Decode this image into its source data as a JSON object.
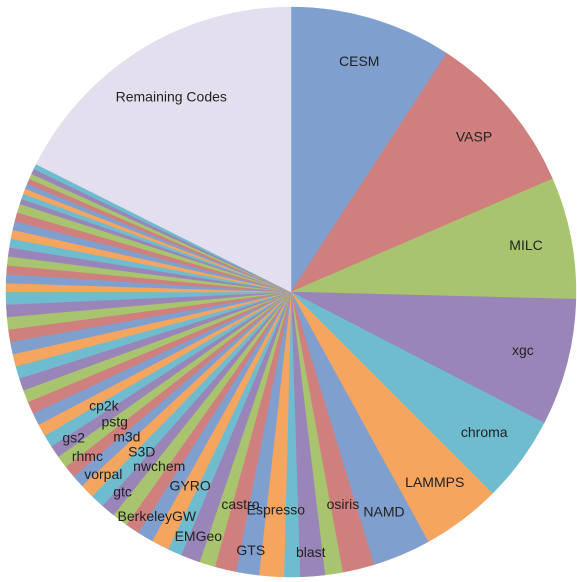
{
  "chart_data": {
    "type": "pie",
    "categories": [
      "CESM",
      "VASP",
      "MILC",
      "xgc",
      "chroma",
      "LAMMPS",
      "NAMD",
      "osiris",
      null,
      "blast",
      null,
      "Espresso",
      "GTS",
      "castro",
      null,
      "EMGeo",
      null,
      "GYRO",
      "BerkeleyGW",
      null,
      "nwchem",
      "gtc",
      "S3D",
      "vorpal",
      "m3d",
      "rhmc",
      "pstg",
      "gs2",
      "cp2k",
      null,
      null,
      null,
      null,
      null,
      null,
      null,
      null,
      null,
      null,
      null,
      null,
      null,
      null,
      null,
      null,
      null,
      null,
      null,
      null,
      null,
      null,
      null,
      null,
      null,
      null,
      null,
      null,
      null,
      null,
      "Remaining Codes"
    ],
    "values": [
      9.2,
      9.3,
      6.9,
      7.2,
      4.9,
      4.5,
      3.3,
      1.8,
      1.0,
      1.4,
      0.9,
      1.4,
      1.3,
      1.2,
      0.9,
      1.1,
      0.8,
      1.0,
      0.9,
      0.8,
      0.9,
      0.8,
      0.8,
      0.8,
      0.7,
      0.7,
      0.7,
      0.7,
      0.7,
      0.7,
      0.7,
      0.7,
      0.7,
      0.7,
      0.7,
      0.7,
      0.7,
      0.7,
      0.7,
      0.7,
      0.7,
      0.5,
      0.5,
      0.5,
      0.5,
      0.5,
      0.5,
      0.5,
      0.5,
      0.5,
      0.5,
      0.3,
      0.3,
      0.3,
      0.3,
      0.3,
      0.3,
      0.3,
      0.3,
      17.6
    ],
    "palette": [
      "#7f9fcf",
      "#cf7f7d",
      "#a9c46e",
      "#9a85b8",
      "#6fbccf",
      "#f6a55f"
    ],
    "last_color": "#e4dfee"
  }
}
